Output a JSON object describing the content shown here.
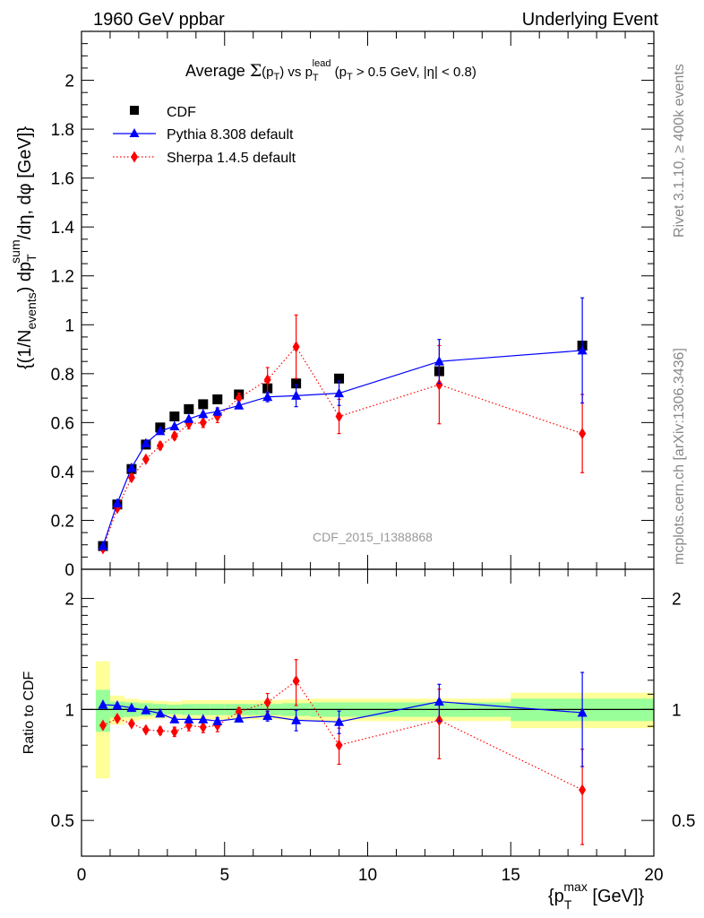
{
  "header": {
    "left": "1960 GeV ppbar",
    "right": "Underlying Event"
  },
  "side_labels": {
    "rivet": "Rivet 3.1.10, ≥ 400k events",
    "mcplots": "mcplots.cern.ch [arXiv:1306.3436]"
  },
  "chart_data": [
    {
      "type": "scatter",
      "title": "Average Σ(p_T) vs p_T^lead (p_T > 0.5 GeV, |η| < 0.8)",
      "title_parts": {
        "average": "Average ",
        "sigma": "Σ",
        "pt_open": "(p",
        "t": "T",
        "pt_close": ")",
        "vs": " vs p",
        "lead": "lead",
        "cut": " (p",
        "cut_rest": " > 0.5 GeV, |η| < 0.8)"
      },
      "watermark": "CDF_2015_I1388868",
      "ylabel": "{(1/N_events) dp_T^sum/dη, dφ [GeV]}",
      "ylabel_parts": {
        "a": "{(1/N",
        "events": "events",
        "b": ") dp",
        "sum": "sum",
        "c": "/dη, dφ [GeV]}"
      },
      "xlim": [
        0,
        20
      ],
      "ylim": [
        0,
        2.2
      ],
      "yticks": [
        0,
        0.2,
        0.4,
        0.6,
        0.8,
        1,
        1.2,
        1.4,
        1.6,
        1.8,
        2
      ],
      "ytick_labels": [
        "0",
        "0.2",
        "0.4",
        "0.6",
        "0.8",
        "1",
        "1.2",
        "1.4",
        "1.6",
        "1.8",
        "2"
      ],
      "legend_position": "top-left",
      "series": [
        {
          "name": "CDF",
          "color": "#000000",
          "marker": "square",
          "x": [
            0.75,
            1.25,
            1.75,
            2.25,
            2.75,
            3.25,
            3.75,
            4.25,
            4.75,
            5.5,
            6.5,
            7.5,
            9.0,
            12.5,
            17.5
          ],
          "y": [
            0.095,
            0.265,
            0.41,
            0.51,
            0.58,
            0.625,
            0.655,
            0.675,
            0.695,
            0.715,
            0.74,
            0.76,
            0.78,
            0.81,
            0.915
          ],
          "err": [
            0,
            0,
            0,
            0,
            0,
            0,
            0,
            0,
            0,
            0,
            0,
            0,
            0,
            0,
            0
          ]
        },
        {
          "name": "Pythia 8.308 default",
          "color": "#0000ff",
          "marker": "triangle",
          "line": "solid",
          "x": [
            0.75,
            1.25,
            1.75,
            2.25,
            2.75,
            3.25,
            3.75,
            4.25,
            4.75,
            5.5,
            6.5,
            7.5,
            9.0,
            12.5,
            17.5
          ],
          "y": [
            0.095,
            0.27,
            0.415,
            0.515,
            0.565,
            0.585,
            0.615,
            0.635,
            0.645,
            0.67,
            0.705,
            0.71,
            0.72,
            0.85,
            0.895
          ],
          "err": [
            0,
            0,
            0,
            0,
            0,
            0,
            0,
            0,
            0.015,
            0.01,
            0.02,
            0.045,
            0.05,
            0.09,
            0.215
          ]
        },
        {
          "name": "Sherpa 1.4.5 default",
          "color": "#ff0000",
          "marker": "diamond",
          "line": "dotted",
          "x": [
            0.75,
            1.25,
            1.75,
            2.25,
            2.75,
            3.25,
            3.75,
            4.25,
            4.75,
            5.5,
            6.5,
            7.5,
            9.0,
            12.5,
            17.5
          ],
          "y": [
            0.085,
            0.25,
            0.375,
            0.45,
            0.505,
            0.545,
            0.595,
            0.6,
            0.625,
            0.7,
            0.775,
            0.91,
            0.625,
            0.755,
            0.555
          ],
          "err": [
            0,
            0,
            0,
            0,
            0.015,
            0.015,
            0.02,
            0.02,
            0.025,
            0.02,
            0.05,
            0.13,
            0.07,
            0.16,
            0.16
          ]
        }
      ]
    },
    {
      "type": "scatter",
      "ylabel": "Ratio to CDF",
      "xlabel": "{p_T^max [GeV]}",
      "xlabel_parts": {
        "a": "{p",
        "t": "T",
        "max": "max",
        "b": " [GeV]}"
      },
      "xlim": [
        0,
        20
      ],
      "ylim": [
        0.4,
        2.4
      ],
      "log_y": true,
      "xticks": [
        0,
        5,
        10,
        15,
        20
      ],
      "xtick_labels": [
        "0",
        "5",
        "10",
        "15",
        "20"
      ],
      "yticks": [
        0.5,
        1,
        2
      ],
      "ytick_labels": [
        "0.5",
        "1",
        "2"
      ],
      "bands": {
        "edges": [
          0.5,
          1.0,
          1.5,
          2.0,
          2.5,
          3.0,
          3.5,
          4.0,
          4.5,
          5.0,
          6.0,
          7.0,
          8.0,
          10.0,
          15.0,
          20.0
        ],
        "yellow_half_width": [
          0.35,
          0.09,
          0.07,
          0.06,
          0.055,
          0.05,
          0.06,
          0.06,
          0.06,
          0.06,
          0.06,
          0.065,
          0.07,
          0.07,
          0.11
        ],
        "green_half_width": [
          0.13,
          0.05,
          0.045,
          0.04,
          0.035,
          0.03,
          0.035,
          0.035,
          0.035,
          0.035,
          0.035,
          0.04,
          0.045,
          0.045,
          0.07
        ],
        "yellow_color": "#ffff99",
        "green_color": "#99ff99"
      },
      "series": [
        {
          "name": "Pythia 8.308 default",
          "color": "#0000ff",
          "marker": "triangle",
          "line": "solid",
          "x": [
            0.75,
            1.25,
            1.75,
            2.25,
            2.75,
            3.25,
            3.75,
            4.25,
            4.75,
            5.5,
            6.5,
            7.5,
            9.0,
            12.5,
            17.5
          ],
          "y": [
            1.03,
            1.025,
            1.01,
            0.995,
            0.975,
            0.94,
            0.94,
            0.94,
            0.93,
            0.945,
            0.96,
            0.935,
            0.925,
            1.05,
            0.98
          ],
          "err": [
            0,
            0,
            0,
            0,
            0,
            0,
            0,
            0,
            0.02,
            0.015,
            0.03,
            0.06,
            0.065,
            0.12,
            0.28
          ]
        },
        {
          "name": "Sherpa 1.4.5 default",
          "color": "#ff0000",
          "marker": "diamond",
          "line": "dotted",
          "x": [
            0.75,
            1.25,
            1.75,
            2.25,
            2.75,
            3.25,
            3.75,
            4.25,
            4.75,
            5.5,
            6.5,
            7.5,
            9.0,
            12.5,
            17.5
          ],
          "y": [
            0.905,
            0.945,
            0.915,
            0.88,
            0.875,
            0.87,
            0.905,
            0.895,
            0.905,
            0.985,
            1.045,
            1.195,
            0.8,
            0.935,
            0.605
          ],
          "err": [
            0,
            0,
            0,
            0,
            0.02,
            0.025,
            0.03,
            0.03,
            0.035,
            0.025,
            0.06,
            0.17,
            0.09,
            0.2,
            0.175
          ]
        }
      ]
    }
  ]
}
